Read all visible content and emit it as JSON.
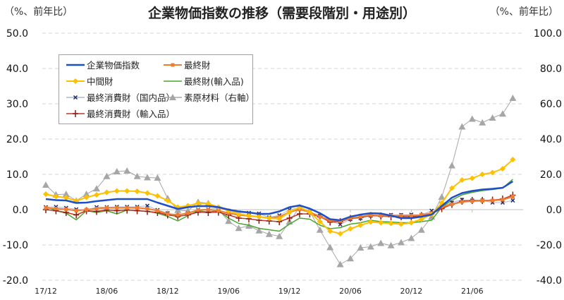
{
  "chart_data": {
    "type": "line",
    "title": "企業物価指数の推移（需要段階別・用途別）",
    "ylabel_left": "（%、前年比）",
    "ylabel_right": "（%、前年比）",
    "ylim_left": [
      -20,
      50
    ],
    "ylim_right": [
      -40,
      100
    ],
    "yticks_left": [
      "50.0",
      "40.0",
      "30.0",
      "20.0",
      "10.0",
      "0.0",
      "-10.0",
      "-20.0"
    ],
    "yticks_right": [
      "100.0",
      "80.0",
      "60.0",
      "40.0",
      "20.0",
      "0.0",
      "-20.0",
      "-40.0"
    ],
    "negative_tick_color": "#e00000",
    "grid": true,
    "legend_position": "upper-left",
    "x_tick_labels": [
      {
        "index": 0,
        "label": "17/12"
      },
      {
        "index": 6,
        "label": "18/06"
      },
      {
        "index": 12,
        "label": "18/12"
      },
      {
        "index": 18,
        "label": "19/06"
      },
      {
        "index": 24,
        "label": "19/12"
      },
      {
        "index": 30,
        "label": "20/06"
      },
      {
        "index": 36,
        "label": "20/12"
      },
      {
        "index": 42,
        "label": "21/06"
      }
    ],
    "x_start": "17/12",
    "x_end": "21/10",
    "series": [
      {
        "name": "企業物価指数",
        "axis": "left",
        "color": "#1f4fc7",
        "marker": "none",
        "width": 2.5,
        "values": [
          3.0,
          2.7,
          2.6,
          1.9,
          2.0,
          2.4,
          2.7,
          3.0,
          3.0,
          3.0,
          3.0,
          2.0,
          1.1,
          0.2,
          0.7,
          1.0,
          1.0,
          0.7,
          0.0,
          -0.5,
          -0.8,
          -1.2,
          -1.2,
          -0.5,
          0.7,
          1.2,
          0.3,
          -1.0,
          -2.7,
          -3.0,
          -2.0,
          -1.4,
          -1.0,
          -1.1,
          -1.7,
          -2.4,
          -2.4,
          -2.0,
          -1.4,
          1.0,
          3.4,
          4.7,
          5.3,
          5.7,
          5.9,
          6.2,
          8.0
        ]
      },
      {
        "name": "最終財",
        "axis": "left",
        "color": "#ed7d31",
        "marker": "square",
        "width": 2,
        "values": [
          0.5,
          0.3,
          0.1,
          -0.3,
          0.0,
          0.3,
          0.5,
          0.5,
          0.5,
          0.5,
          0.3,
          -0.3,
          -1.2,
          -1.5,
          -1.0,
          -0.1,
          0.0,
          -0.3,
          -1.0,
          -1.5,
          -1.8,
          -2.0,
          -2.4,
          -2.0,
          -0.7,
          0.1,
          -0.7,
          -2.0,
          -3.0,
          -3.2,
          -2.4,
          -2.0,
          -1.5,
          -1.7,
          -1.7,
          -1.7,
          -1.7,
          -1.5,
          -1.0,
          0.8,
          1.5,
          2.2,
          2.4,
          2.5,
          2.6,
          2.8,
          3.7
        ]
      },
      {
        "name": "中間財",
        "axis": "left",
        "color": "#ffc000",
        "marker": "diamond",
        "width": 2,
        "values": [
          4.4,
          3.7,
          3.4,
          2.5,
          3.5,
          4.2,
          4.9,
          5.3,
          5.3,
          5.2,
          4.7,
          3.9,
          2.6,
          0.7,
          1.1,
          1.8,
          1.7,
          0.7,
          -0.3,
          -1.2,
          -1.7,
          -2.0,
          -2.4,
          -2.6,
          -0.7,
          0.7,
          -0.7,
          -3.4,
          -6.1,
          -6.8,
          -5.4,
          -4.4,
          -3.5,
          -3.7,
          -3.9,
          -4.1,
          -3.7,
          -2.7,
          -1.4,
          1.9,
          6.1,
          8.4,
          8.9,
          10.0,
          10.5,
          11.6,
          14.2
        ]
      },
      {
        "name": "最終財(輸入品)",
        "axis": "left",
        "color": "#4aa52e",
        "marker": "none",
        "width": 1.5,
        "values": [
          1.0,
          -0.3,
          -1.0,
          -2.9,
          -0.3,
          -0.8,
          -0.3,
          -1.2,
          -0.1,
          -0.3,
          -0.5,
          -1.0,
          -1.9,
          -3.2,
          -1.7,
          -0.3,
          -0.7,
          -0.3,
          -2.4,
          -3.9,
          -4.4,
          -5.3,
          -5.7,
          -6.1,
          -4.1,
          -2.4,
          -2.7,
          -4.4,
          -5.4,
          -5.1,
          -4.1,
          -3.7,
          -3.0,
          -3.4,
          -3.5,
          -3.7,
          -3.7,
          -3.4,
          -3.0,
          0.7,
          2.7,
          4.2,
          4.9,
          5.4,
          5.7,
          6.1,
          8.6
        ]
      },
      {
        "name": "最終消費財（国内品）",
        "axis": "left",
        "color": "#a9b8d8",
        "marker_color": "#1a2a6c",
        "marker": "x",
        "width": 1,
        "values": [
          0.7,
          0.8,
          0.5,
          0.1,
          -0.1,
          0.7,
          0.7,
          0.8,
          0.8,
          0.8,
          1.1,
          -0.1,
          -1.0,
          -1.7,
          -1.0,
          0.0,
          0.1,
          0.5,
          -0.3,
          -0.8,
          -0.9,
          -1.1,
          -2.2,
          -1.6,
          0.0,
          0.5,
          -0.7,
          -1.7,
          -3.2,
          -4.2,
          -2.7,
          -2.4,
          -1.7,
          -1.7,
          -1.5,
          -1.5,
          -1.4,
          -1.5,
          -0.3,
          0.7,
          2.0,
          2.8,
          2.6,
          2.6,
          2.0,
          2.0,
          2.6
        ]
      },
      {
        "name": "素原材料（右軸）",
        "axis": "right",
        "color": "#a6a6a6",
        "marker": "triangle",
        "width": 1,
        "values": [
          14.0,
          8.5,
          8.8,
          5.1,
          8.8,
          11.9,
          18.9,
          21.6,
          22.0,
          18.9,
          18.2,
          18.0,
          6.4,
          -0.3,
          -0.7,
          4.3,
          3.6,
          0.0,
          -6.5,
          -10.5,
          -9.2,
          -11.9,
          -13.9,
          -15.1,
          -6.8,
          1.4,
          -1.0,
          -11.5,
          -21.4,
          -31.0,
          -27.7,
          -21.6,
          -21.0,
          -19.0,
          -20.3,
          -18.6,
          -16.2,
          -11.5,
          -4.1,
          7.2,
          25.0,
          47.0,
          51.4,
          49.3,
          52.0,
          54.3,
          63.2
        ]
      },
      {
        "name": "最終消費財（輸入品）",
        "axis": "left",
        "color": "#c0392b",
        "marker_color": "#8b1a10",
        "marker": "plus",
        "width": 1.5,
        "values": [
          0.0,
          -0.3,
          -0.8,
          -1.5,
          -0.3,
          -0.5,
          -0.1,
          -0.3,
          -0.1,
          -0.3,
          -0.5,
          -0.8,
          -1.5,
          -1.9,
          -1.5,
          -0.7,
          -0.8,
          -0.7,
          -1.5,
          -2.4,
          -2.6,
          -3.0,
          -3.2,
          -3.4,
          -2.4,
          -1.2,
          -1.2,
          -2.0,
          -3.5,
          -3.4,
          -2.5,
          -2.2,
          -1.7,
          -1.8,
          -2.0,
          -2.0,
          -2.0,
          -1.7,
          -1.2,
          0.3,
          1.5,
          2.4,
          2.6,
          2.6,
          2.7,
          3.0,
          4.1
        ]
      }
    ],
    "legend_order": [
      0,
      1,
      2,
      3,
      4,
      5,
      6
    ]
  }
}
